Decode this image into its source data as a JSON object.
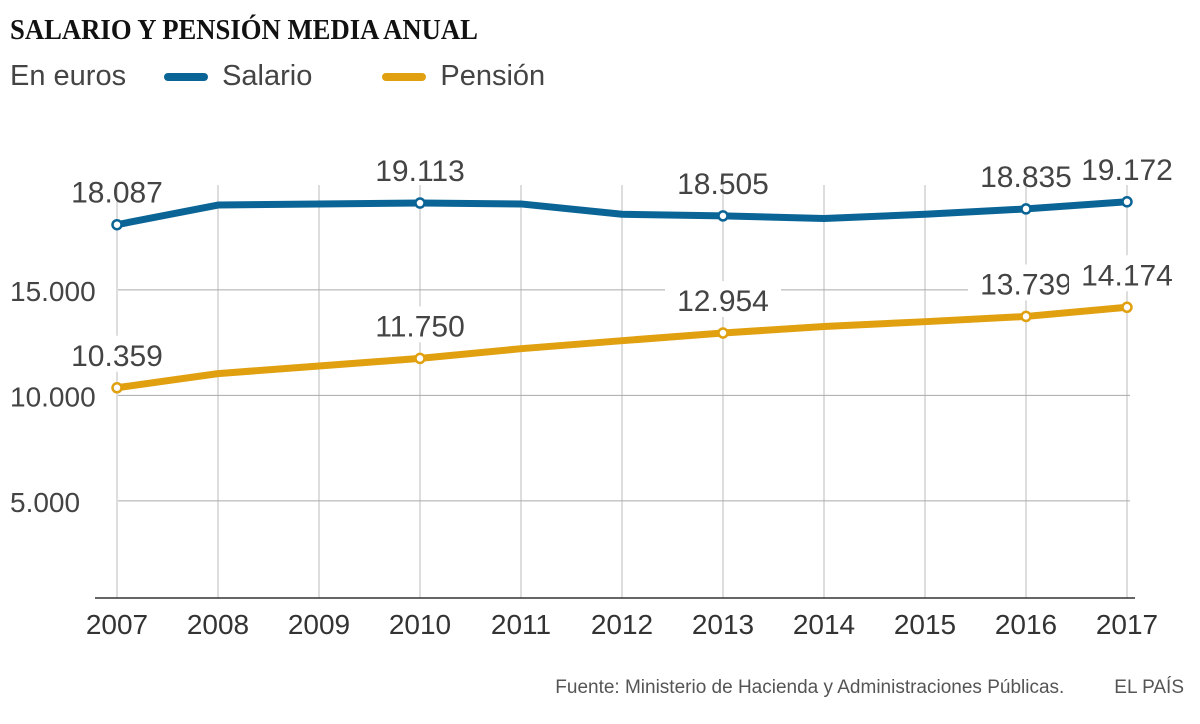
{
  "chart_data": {
    "type": "line",
    "title": "SALARIO Y PENSIÓN MEDIA ANUAL",
    "subtitle": "En euros",
    "x": [
      2007,
      2008,
      2009,
      2010,
      2011,
      2012,
      2013,
      2014,
      2015,
      2016,
      2017
    ],
    "ylim": [
      0,
      20000
    ],
    "yticks": [
      5000,
      10000,
      15000
    ],
    "ytick_labels": [
      "5.000",
      "10.000",
      "15.000"
    ],
    "grid": true,
    "legend_position": "top-left",
    "series": [
      {
        "name": "Salario",
        "color": "#0a6596",
        "values": [
          18087,
          19020,
          19070,
          19113,
          19070,
          18580,
          18505,
          18380,
          18580,
          18835,
          19172
        ],
        "labels": {
          "2007": "18.087",
          "2010": "19.113",
          "2013": "18.505",
          "2016": "18.835",
          "2017": "19.172"
        }
      },
      {
        "name": "Pensión",
        "color": "#e0a010",
        "values": [
          10359,
          11030,
          11390,
          11750,
          12210,
          12590,
          12954,
          13260,
          13490,
          13739,
          14174
        ],
        "labels": {
          "2007": "10.359",
          "2010": "11.750",
          "2013": "12.954",
          "2016": "13.739",
          "2017": "14.174"
        }
      }
    ]
  },
  "source": "Fuente: Ministerio de Hacienda y Administraciones Públicas.",
  "brand": "EL PAÍS"
}
